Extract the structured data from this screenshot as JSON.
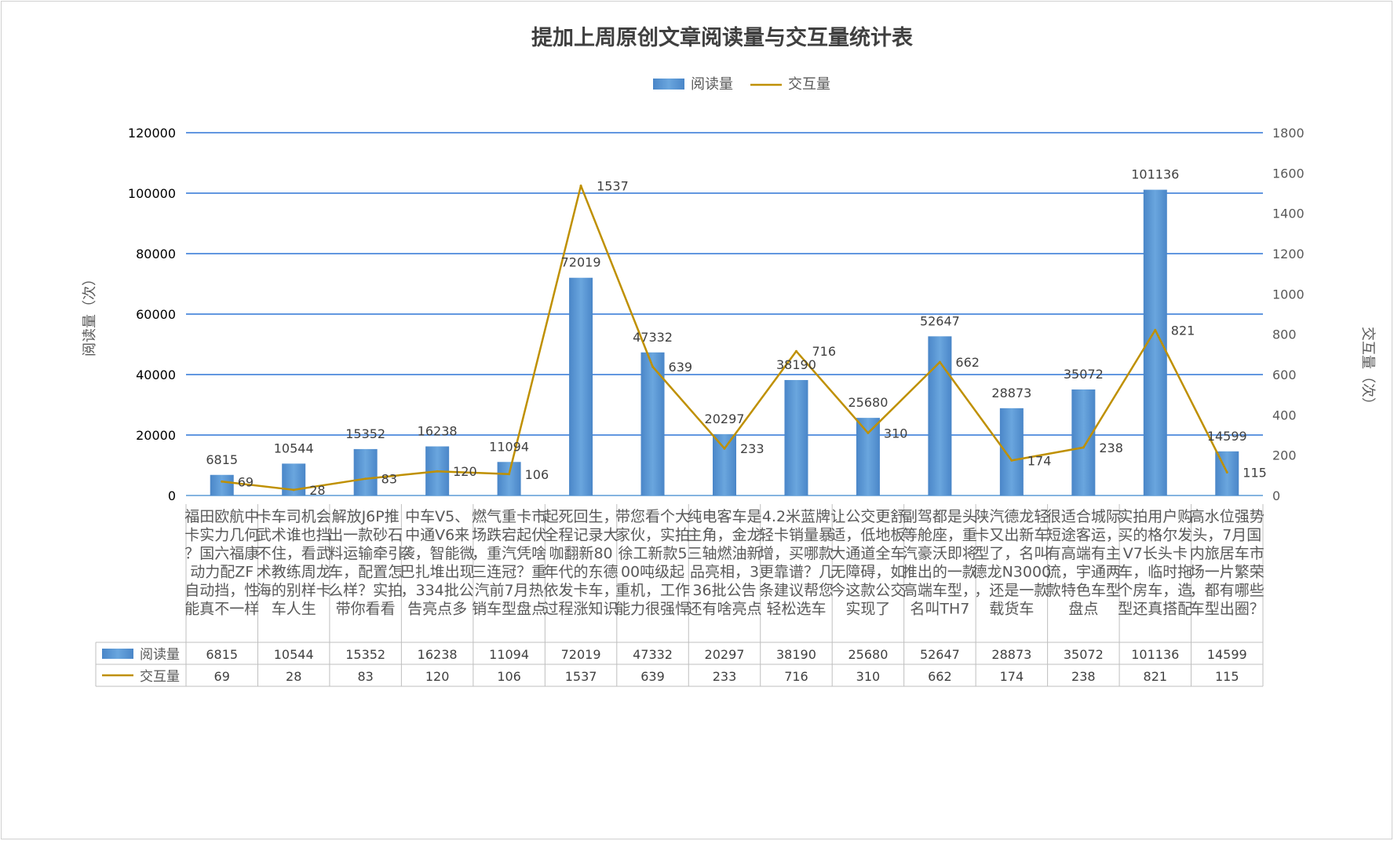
{
  "chart_data": {
    "type": "bar+line",
    "title": "提加上周原创文章阅读量与交互量统计表",
    "legend": {
      "placement": "top-center",
      "items": [
        "阅读量",
        "交互量"
      ]
    },
    "ylabel_left": "阅读量（次）",
    "ylabel_right": "交互量（次）",
    "ylim_left": [
      0,
      120000
    ],
    "ylim_right": [
      0,
      1800
    ],
    "yticks_left": [
      "0",
      "20000",
      "40000",
      "60000",
      "80000",
      "100000",
      "120000"
    ],
    "yticks_right": [
      "0",
      "200",
      "400",
      "600",
      "800",
      "1000",
      "1200",
      "1400",
      "1600",
      "1800"
    ],
    "grid": true,
    "categories": [
      "福田欧航中卡实力几何？国六福康动力配ZF自动挡，性能真不一样",
      "卡车司机会武术谁也挡不住，看武术教练周龙海的别样卡车人生",
      "解放J6P推出一款砂石料运输牵引车，配置怎么样？实拍带你看看",
      "中车V5、中通V6来袭，智能微巴扎堆出现，334批公告亮点多",
      "燃气重卡市场跌宕起伏，重汽凭啥三连冠？重汽前7月热销车型盘点",
      "起死回生，全程记录大咖翻新80年代的东德依发卡车，过程涨知识",
      "带您看个大家伙，实拍徐工新款500吨级起重机，工作能力很强悍",
      "纯电客车是主角，金龙三轴燃油新品亮相，336批公告还有啥亮点",
      "4.2米蓝牌轻卡销量暴增，买哪款更靠谱？几条建议帮您轻松选车",
      "让公交更舒适，低地板大通道全车无障碍，如今这款公交实现了",
      "副驾都是头等舱座，重汽豪沃即将推出的一款高端车型，名叫TH7",
      "陕汽德龙轻卡又出新车型了，名叫德龙N3000，还是一款载货车",
      "很适合城际短途客运，有高端有主流，宇通两款特色车型盘点",
      "实拍用户购买的格尔发V7长头卡车，临时拖个房车，造型还真搭配",
      "高水位强势头，7月国内旅居车市场一片繁荣，都有哪些车型出圈？"
    ],
    "series": [
      {
        "name": "阅读量",
        "type": "bar",
        "axis": "left",
        "color": "#5B9BD5",
        "values": [
          6815,
          10544,
          15352,
          16238,
          11094,
          72019,
          47332,
          20297,
          38190,
          25680,
          52647,
          28873,
          35072,
          101136,
          14599
        ]
      },
      {
        "name": "交互量",
        "type": "line",
        "axis": "right",
        "color": "#BF9000",
        "values": [
          69,
          28,
          83,
          120,
          106,
          1537,
          639,
          233,
          716,
          310,
          662,
          174,
          238,
          821,
          115
        ]
      }
    ]
  }
}
